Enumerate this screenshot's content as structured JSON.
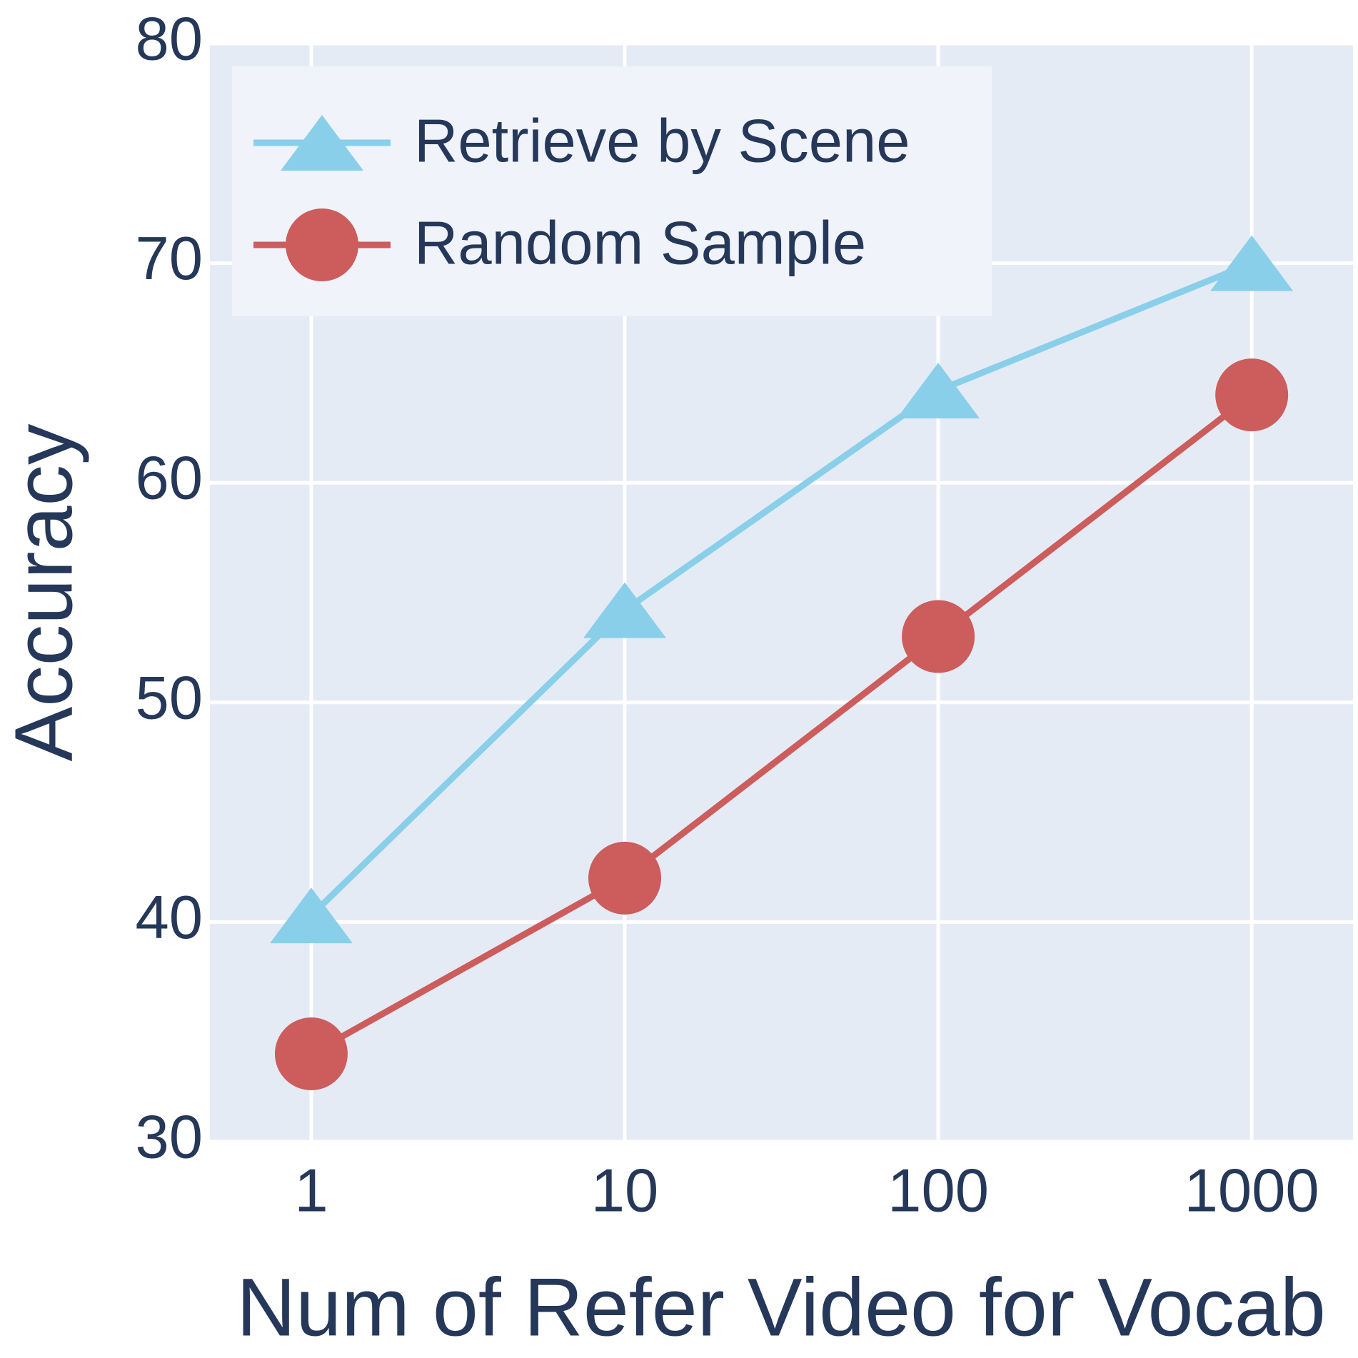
{
  "chart_data": {
    "type": "line",
    "x_label": "Num of Refer Video for Vocab",
    "y_label": "Accuracy",
    "x": [
      1,
      10,
      100,
      1000
    ],
    "xscale": "log",
    "xlim": [
      0.475,
      2104
    ],
    "xticks": [
      1,
      10,
      100,
      1000
    ],
    "ylim": [
      30,
      80
    ],
    "yticks": [
      30,
      40,
      50,
      60,
      70,
      80
    ],
    "grid": true,
    "legend": "upper left",
    "series": [
      {
        "name": "Retrieve by Scene",
        "color": "#89cfea",
        "marker": "triangle",
        "values": [
          40.3,
          54.2,
          64.2,
          70.0
        ]
      },
      {
        "name": "Random Sample",
        "color": "#cd5c5c",
        "marker": "circle",
        "values": [
          34.0,
          42.0,
          53.0,
          64.0
        ]
      }
    ]
  }
}
